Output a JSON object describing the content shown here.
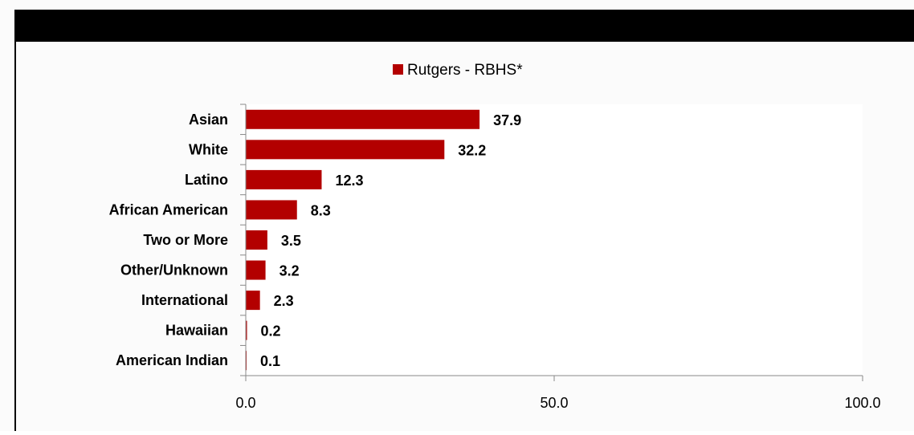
{
  "colors": {
    "bar": "#b30000",
    "plot_bg": "#ffffff",
    "axis": "#888888",
    "header": "#000000"
  },
  "chart_data": {
    "type": "bar",
    "orientation": "horizontal",
    "categories": [
      "Asian",
      "White",
      "Latino",
      "African American",
      "Two or More",
      "Other/Unknown",
      "International",
      "Hawaiian",
      "American Indian"
    ],
    "series": [
      {
        "name": "Rutgers - RBHS*",
        "values": [
          37.9,
          32.2,
          12.3,
          8.3,
          3.5,
          3.2,
          2.3,
          0.2,
          0.1
        ]
      }
    ],
    "value_labels": [
      "37.9",
      "32.2",
      "12.3",
      "8.3",
      "3.5",
      "3.2",
      "2.3",
      "0.2",
      "0.1"
    ],
    "xlim": [
      0,
      100
    ],
    "xticks": [
      0,
      50,
      100
    ],
    "xtick_labels": [
      "0.0",
      "50.0",
      "100.0"
    ],
    "legend_position": "top-center",
    "grid": false
  }
}
